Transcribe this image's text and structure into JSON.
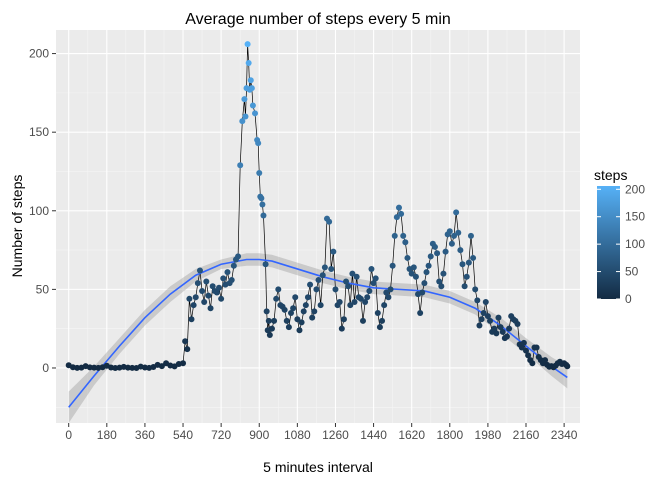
{
  "chart_data": {
    "type": "line",
    "title": "Average number of steps every 5 min",
    "xlabel": "5 minutes interval",
    "ylabel": "Number of steps",
    "xlim": [
      -60,
      2415
    ],
    "ylim": [
      -35,
      215
    ],
    "x_ticks": [
      0,
      180,
      360,
      540,
      720,
      900,
      1080,
      1260,
      1440,
      1620,
      1800,
      1980,
      2160,
      2340
    ],
    "y_ticks": [
      0,
      50,
      100,
      150,
      200
    ],
    "grid": true,
    "legend": {
      "title": "steps",
      "position": "right",
      "ticks": [
        0,
        50,
        100,
        150,
        200
      ],
      "color_low": "#132B43",
      "color_high": "#56B1F7"
    },
    "series": [
      {
        "kind": "observed",
        "points": [
          [
            0,
            1.7
          ],
          [
            20,
            0.5
          ],
          [
            40,
            0.1
          ],
          [
            60,
            0.2
          ],
          [
            80,
            1.2
          ],
          [
            100,
            0.4
          ],
          [
            120,
            0.2
          ],
          [
            140,
            0.1
          ],
          [
            160,
            0.5
          ],
          [
            180,
            1.4
          ],
          [
            200,
            0.3
          ],
          [
            220,
            0.0
          ],
          [
            240,
            0.2
          ],
          [
            260,
            0.7
          ],
          [
            280,
            0.2
          ],
          [
            300,
            0.1
          ],
          [
            320,
            0.0
          ],
          [
            340,
            0.9
          ],
          [
            360,
            0.3
          ],
          [
            380,
            0.1
          ],
          [
            400,
            0.6
          ],
          [
            420,
            2.0
          ],
          [
            440,
            1.2
          ],
          [
            460,
            3.0
          ],
          [
            480,
            1.6
          ],
          [
            500,
            1.0
          ],
          [
            520,
            2.5
          ],
          [
            540,
            3.0
          ],
          [
            550,
            17
          ],
          [
            560,
            12
          ],
          [
            570,
            44
          ],
          [
            580,
            31
          ],
          [
            590,
            40
          ],
          [
            600,
            45
          ],
          [
            610,
            54
          ],
          [
            620,
            62
          ],
          [
            630,
            49
          ],
          [
            640,
            42
          ],
          [
            650,
            55
          ],
          [
            660,
            46
          ],
          [
            670,
            38
          ],
          [
            680,
            52
          ],
          [
            690,
            49
          ],
          [
            700,
            48
          ],
          [
            710,
            51
          ],
          [
            720,
            44
          ],
          [
            730,
            57
          ],
          [
            740,
            53
          ],
          [
            750,
            61
          ],
          [
            760,
            54
          ],
          [
            770,
            56
          ],
          [
            780,
            65
          ],
          [
            790,
            69
          ],
          [
            800,
            71
          ],
          [
            810,
            129
          ],
          [
            820,
            157
          ],
          [
            830,
            171
          ],
          [
            835,
            160
          ],
          [
            840,
            178
          ],
          [
            845,
            206
          ],
          [
            850,
            194
          ],
          [
            855,
            177
          ],
          [
            860,
            183
          ],
          [
            865,
            178
          ],
          [
            870,
            167
          ],
          [
            880,
            162
          ],
          [
            890,
            145
          ],
          [
            895,
            143
          ],
          [
            900,
            124
          ],
          [
            905,
            109
          ],
          [
            910,
            108
          ],
          [
            915,
            104
          ],
          [
            920,
            97
          ],
          [
            930,
            66
          ],
          [
            935,
            36
          ],
          [
            940,
            24
          ],
          [
            945,
            30
          ],
          [
            950,
            21
          ],
          [
            960,
            25
          ],
          [
            970,
            30
          ],
          [
            980,
            44
          ],
          [
            990,
            50
          ],
          [
            1000,
            40
          ],
          [
            1010,
            39
          ],
          [
            1020,
            37
          ],
          [
            1030,
            30
          ],
          [
            1040,
            26
          ],
          [
            1050,
            35
          ],
          [
            1060,
            38
          ],
          [
            1070,
            45
          ],
          [
            1080,
            31
          ],
          [
            1090,
            24
          ],
          [
            1100,
            29
          ],
          [
            1110,
            36
          ],
          [
            1120,
            40
          ],
          [
            1130,
            45
          ],
          [
            1140,
            53
          ],
          [
            1150,
            32
          ],
          [
            1160,
            36
          ],
          [
            1170,
            50
          ],
          [
            1180,
            56
          ],
          [
            1190,
            40
          ],
          [
            1200,
            59
          ],
          [
            1210,
            64
          ],
          [
            1220,
            95
          ],
          [
            1230,
            93
          ],
          [
            1240,
            63
          ],
          [
            1250,
            74
          ],
          [
            1260,
            50
          ],
          [
            1270,
            40
          ],
          [
            1280,
            42
          ],
          [
            1290,
            25
          ],
          [
            1300,
            31
          ],
          [
            1310,
            55
          ],
          [
            1320,
            52
          ],
          [
            1330,
            40
          ],
          [
            1340,
            60
          ],
          [
            1350,
            42
          ],
          [
            1360,
            58
          ],
          [
            1370,
            45
          ],
          [
            1380,
            44
          ],
          [
            1390,
            30
          ],
          [
            1400,
            42
          ],
          [
            1410,
            45
          ],
          [
            1420,
            49
          ],
          [
            1430,
            63
          ],
          [
            1440,
            54
          ],
          [
            1450,
            57
          ],
          [
            1460,
            35
          ],
          [
            1470,
            26
          ],
          [
            1480,
            30
          ],
          [
            1490,
            40
          ],
          [
            1500,
            48
          ],
          [
            1510,
            45
          ],
          [
            1520,
            50
          ],
          [
            1530,
            65
          ],
          [
            1540,
            84
          ],
          [
            1550,
            96
          ],
          [
            1560,
            102
          ],
          [
            1570,
            98
          ],
          [
            1580,
            84
          ],
          [
            1590,
            80
          ],
          [
            1600,
            70
          ],
          [
            1610,
            63
          ],
          [
            1620,
            60
          ],
          [
            1630,
            64
          ],
          [
            1640,
            58
          ],
          [
            1650,
            47
          ],
          [
            1660,
            35
          ],
          [
            1670,
            48
          ],
          [
            1680,
            54
          ],
          [
            1690,
            61
          ],
          [
            1700,
            65
          ],
          [
            1710,
            71
          ],
          [
            1720,
            79
          ],
          [
            1730,
            77
          ],
          [
            1740,
            73
          ],
          [
            1750,
            55
          ],
          [
            1760,
            52
          ],
          [
            1770,
            60
          ],
          [
            1780,
            74
          ],
          [
            1790,
            85
          ],
          [
            1800,
            87
          ],
          [
            1810,
            79
          ],
          [
            1820,
            84
          ],
          [
            1830,
            99
          ],
          [
            1840,
            86
          ],
          [
            1850,
            75
          ],
          [
            1860,
            66
          ],
          [
            1870,
            52
          ],
          [
            1880,
            58
          ],
          [
            1890,
            67
          ],
          [
            1900,
            84
          ],
          [
            1910,
            70
          ],
          [
            1920,
            50
          ],
          [
            1930,
            43
          ],
          [
            1940,
            27
          ],
          [
            1950,
            31
          ],
          [
            1960,
            35
          ],
          [
            1970,
            42
          ],
          [
            1980,
            33
          ],
          [
            1990,
            30
          ],
          [
            2000,
            23
          ],
          [
            2010,
            25
          ],
          [
            2020,
            22
          ],
          [
            2030,
            32
          ],
          [
            2040,
            26
          ],
          [
            2050,
            23
          ],
          [
            2060,
            19
          ],
          [
            2070,
            20
          ],
          [
            2080,
            25
          ],
          [
            2090,
            33
          ],
          [
            2100,
            31
          ],
          [
            2110,
            30
          ],
          [
            2120,
            28
          ],
          [
            2130,
            15
          ],
          [
            2140,
            13
          ],
          [
            2150,
            16
          ],
          [
            2160,
            11
          ],
          [
            2170,
            8
          ],
          [
            2180,
            5
          ],
          [
            2190,
            3
          ],
          [
            2200,
            13
          ],
          [
            2210,
            13
          ],
          [
            2220,
            7
          ],
          [
            2230,
            5
          ],
          [
            2240,
            3
          ],
          [
            2250,
            5
          ],
          [
            2260,
            2
          ],
          [
            2270,
            0.8
          ],
          [
            2280,
            1.2
          ],
          [
            2290,
            0.5
          ],
          [
            2300,
            1.5
          ],
          [
            2310,
            3
          ],
          [
            2320,
            4
          ],
          [
            2330,
            2.5
          ],
          [
            2340,
            3
          ],
          [
            2350,
            2
          ],
          [
            2355,
            1.1
          ]
        ]
      },
      {
        "kind": "smooth",
        "color": "#3366FF",
        "band_color": "#999999",
        "points": [
          [
            0,
            -25,
            -35,
            -15
          ],
          [
            120,
            -5,
            -11,
            1
          ],
          [
            240,
            14,
            9,
            19
          ],
          [
            360,
            32,
            27,
            37
          ],
          [
            480,
            47,
            42,
            52
          ],
          [
            600,
            59,
            55,
            63
          ],
          [
            720,
            66,
            63,
            69
          ],
          [
            840,
            69,
            65,
            73
          ],
          [
            900,
            69,
            65,
            73
          ],
          [
            960,
            68,
            64,
            72
          ],
          [
            1080,
            63,
            59,
            67
          ],
          [
            1200,
            58,
            54,
            62
          ],
          [
            1320,
            54,
            50,
            58
          ],
          [
            1440,
            51,
            47,
            55
          ],
          [
            1560,
            50,
            46,
            54
          ],
          [
            1680,
            49,
            45,
            53
          ],
          [
            1800,
            45,
            41,
            49
          ],
          [
            1920,
            38,
            34,
            42
          ],
          [
            2040,
            27,
            22,
            32
          ],
          [
            2160,
            14,
            9,
            19
          ],
          [
            2280,
            1,
            -5,
            7
          ],
          [
            2355,
            -6,
            -13,
            1
          ]
        ]
      }
    ]
  }
}
